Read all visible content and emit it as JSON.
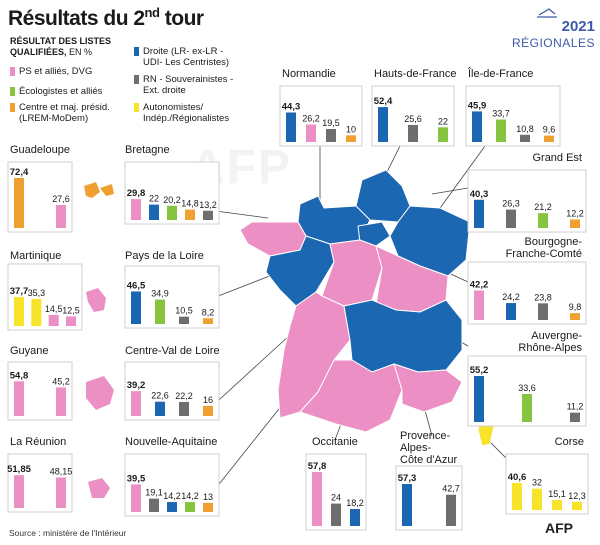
{
  "title": {
    "main": "Résultats du 2",
    "sup": "nd",
    "rest": " tour"
  },
  "logo": {
    "year": "2021",
    "subtitle": "RÉGIONALES"
  },
  "legend": {
    "heading": "RÉSULTAT DES LISTES",
    "heading2": "QUALIFIÉES,",
    "unit": " EN %",
    "items": [
      {
        "label": "PS et alliés, DVG",
        "label2": "",
        "color": "#ec8fc4"
      },
      {
        "label": "Écologistes et alliés",
        "label2": "",
        "color": "#86c440"
      },
      {
        "label": "Centre et maj. présid.",
        "label2": "(LREM-MoDem)",
        "color": "#f0a030"
      },
      {
        "label": "Droite (LR- ex-LR -",
        "label2": "UDI- Les Centristes)",
        "color": "#1c67b1"
      },
      {
        "label": "RN - Souverainistes -",
        "label2": "Ext. droite",
        "color": "#6e6e6e"
      },
      {
        "label": "Autonomistes/",
        "label2": "Indép./Régionalistes",
        "color": "#f7e32a"
      }
    ]
  },
  "colors": {
    "PS": "#ec8fc4",
    "ECO": "#86c440",
    "CEN": "#f0a030",
    "DR": "#1c67b1",
    "RN": "#6e6e6e",
    "AUT": "#f7e32a"
  },
  "chart_data": {
    "type": "bar",
    "unit": "%",
    "regions": [
      {
        "name": "Normandie",
        "bars": [
          {
            "party": "DR",
            "value": 44.3,
            "label": "44,3"
          },
          {
            "party": "PS",
            "value": 26.2,
            "label": "26,2"
          },
          {
            "party": "RN",
            "value": 19.5,
            "label": "19,5"
          },
          {
            "party": "CEN",
            "value": 10,
            "label": "10"
          }
        ]
      },
      {
        "name": "Hauts-de-France",
        "bars": [
          {
            "party": "DR",
            "value": 52.4,
            "label": "52,4"
          },
          {
            "party": "RN",
            "value": 25.6,
            "label": "25,6"
          },
          {
            "party": "ECO",
            "value": 22,
            "label": "22"
          }
        ]
      },
      {
        "name": "Île-de-France",
        "bars": [
          {
            "party": "DR",
            "value": 45.9,
            "label": "45,9"
          },
          {
            "party": "ECO",
            "value": 33.7,
            "label": "33,7"
          },
          {
            "party": "RN",
            "value": 10.8,
            "label": "10,8"
          },
          {
            "party": "CEN",
            "value": 9.6,
            "label": "9,6"
          }
        ]
      },
      {
        "name": "Guadeloupe",
        "bars": [
          {
            "party": "CEN",
            "value": 72.4,
            "label": "72,4"
          },
          {
            "party": "PS",
            "value": 27.6,
            "label": "27,6"
          }
        ]
      },
      {
        "name": "Bretagne",
        "bars": [
          {
            "party": "PS",
            "value": 29.8,
            "label": "29,8"
          },
          {
            "party": "DR",
            "value": 22,
            "label": "22"
          },
          {
            "party": "ECO",
            "value": 20.2,
            "label": "20,2"
          },
          {
            "party": "CEN",
            "value": 14.8,
            "label": "14,8"
          },
          {
            "party": "RN",
            "value": 13.2,
            "label": "13,2"
          }
        ]
      },
      {
        "name": "Grand Est",
        "bars": [
          {
            "party": "DR",
            "value": 40.3,
            "label": "40,3"
          },
          {
            "party": "RN",
            "value": 26.3,
            "label": "26,3"
          },
          {
            "party": "ECO",
            "value": 21.2,
            "label": "21,2"
          },
          {
            "party": "CEN",
            "value": 12.2,
            "label": "12,2"
          }
        ]
      },
      {
        "name": "Martinique",
        "bars": [
          {
            "party": "AUT",
            "value": 37.7,
            "label": "37,7"
          },
          {
            "party": "AUT",
            "value": 35.3,
            "label": "35,3"
          },
          {
            "party": "PS",
            "value": 14.5,
            "label": "14,5"
          },
          {
            "party": "PS",
            "value": 12.5,
            "label": "12,5"
          }
        ]
      },
      {
        "name": "Pays de la Loire",
        "bars": [
          {
            "party": "DR",
            "value": 46.5,
            "label": "46,5"
          },
          {
            "party": "ECO",
            "value": 34.9,
            "label": "34,9"
          },
          {
            "party": "RN",
            "value": 10.5,
            "label": "10,5"
          },
          {
            "party": "CEN",
            "value": 8.2,
            "label": "8,2"
          }
        ]
      },
      {
        "name": "Bourgogne-Franche-Comté",
        "bars": [
          {
            "party": "PS",
            "value": 42.2,
            "label": "42,2"
          },
          {
            "party": "DR",
            "value": 24.2,
            "label": "24,2"
          },
          {
            "party": "RN",
            "value": 23.8,
            "label": "23,8"
          },
          {
            "party": "CEN",
            "value": 9.8,
            "label": "9,8"
          }
        ]
      },
      {
        "name": "Guyane",
        "bars": [
          {
            "party": "PS",
            "value": 54.8,
            "label": "54,8"
          },
          {
            "party": "PS",
            "value": 45.2,
            "label": "45,2"
          }
        ]
      },
      {
        "name": "Centre-Val de Loire",
        "bars": [
          {
            "party": "PS",
            "value": 39.2,
            "label": "39,2"
          },
          {
            "party": "DR",
            "value": 22.6,
            "label": "22,6"
          },
          {
            "party": "RN",
            "value": 22.2,
            "label": "22,2"
          },
          {
            "party": "CEN",
            "value": 16,
            "label": "16"
          }
        ]
      },
      {
        "name": "Auvergne-Rhône-Alpes",
        "bars": [
          {
            "party": "DR",
            "value": 55.2,
            "label": "55,2"
          },
          {
            "party": "ECO",
            "value": 33.6,
            "label": "33,6"
          },
          {
            "party": "RN",
            "value": 11.2,
            "label": "11,2"
          }
        ]
      },
      {
        "name": "La Réunion",
        "bars": [
          {
            "party": "PS",
            "value": 51.85,
            "label": "51,85"
          },
          {
            "party": "PS",
            "value": 48.15,
            "label": "48,15"
          }
        ]
      },
      {
        "name": "Nouvelle-Aquitaine",
        "bars": [
          {
            "party": "PS",
            "value": 39.5,
            "label": "39,5"
          },
          {
            "party": "RN",
            "value": 19.1,
            "label": "19,1"
          },
          {
            "party": "DR",
            "value": 14.2,
            "label": "14,2"
          },
          {
            "party": "ECO",
            "value": 14.2,
            "label": "14,2"
          },
          {
            "party": "CEN",
            "value": 13,
            "label": "13"
          }
        ]
      },
      {
        "name": "Occitanie",
        "bars": [
          {
            "party": "PS",
            "value": 57.8,
            "label": "57,8"
          },
          {
            "party": "RN",
            "value": 24,
            "label": "24"
          },
          {
            "party": "DR",
            "value": 18.2,
            "label": "18,2"
          }
        ]
      },
      {
        "name": "Provence-Alpes-Côte d'Azur",
        "bars": [
          {
            "party": "DR",
            "value": 57.3,
            "label": "57,3"
          },
          {
            "party": "RN",
            "value": 42.7,
            "label": "42,7"
          }
        ]
      },
      {
        "name": "Corse",
        "bars": [
          {
            "party": "AUT",
            "value": 40.6,
            "label": "40,6"
          },
          {
            "party": "AUT",
            "value": 32,
            "label": "32"
          },
          {
            "party": "AUT",
            "value": 15.1,
            "label": "15,1"
          },
          {
            "party": "AUT",
            "value": 12.3,
            "label": "12,3"
          }
        ]
      }
    ]
  },
  "footer": {
    "source": "Source : ministère de l'Intérieur",
    "logo": "AFP"
  },
  "watermark": "AFP"
}
